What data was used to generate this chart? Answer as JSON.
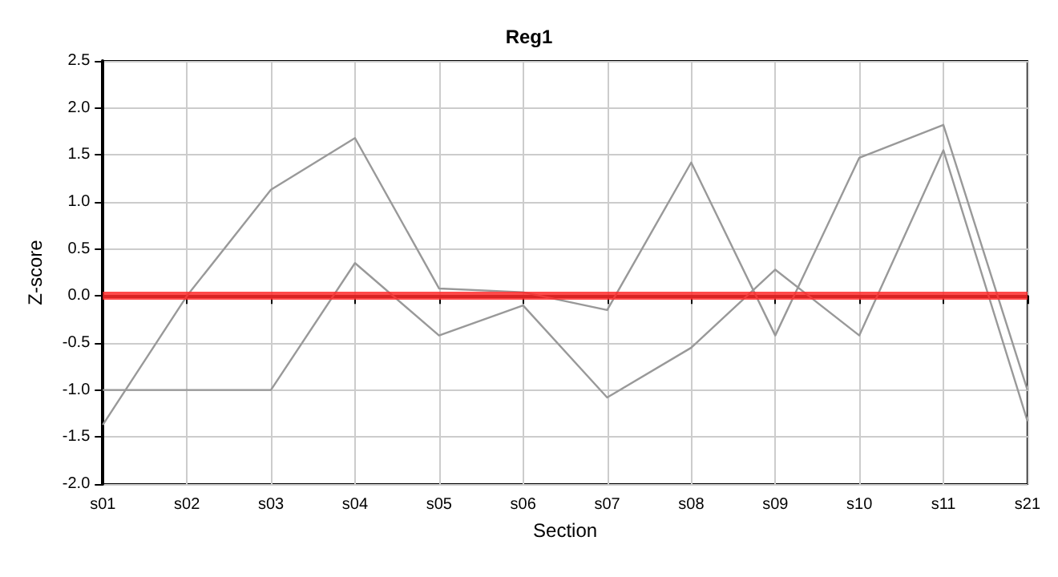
{
  "chart_data": {
    "type": "line",
    "title": "Reg1",
    "xlabel": "Section",
    "ylabel": "Z-score",
    "categories": [
      "s01",
      "s02",
      "s03",
      "s04",
      "s05",
      "s06",
      "s07",
      "s08",
      "s09",
      "s10",
      "s11",
      "s21"
    ],
    "series": [
      {
        "color": "#999999",
        "values": [
          -1.37,
          0,
          1.13,
          1.68,
          0.08,
          0.04,
          -0.15,
          1.42,
          -0.42,
          1.47,
          1.82,
          -1.0
        ]
      },
      {
        "color": "#999999",
        "values": [
          -1.0,
          -1.0,
          -1.0,
          0.35,
          -0.42,
          -0.1,
          -1.08,
          -0.55,
          0.28,
          -0.42,
          1.55,
          -1.33
        ]
      }
    ],
    "ylim": [
      -2.0,
      2.5
    ],
    "yticks": [
      {
        "value": -2,
        "label": "-2.0"
      },
      {
        "value": -1.5,
        "label": "-1.5"
      },
      {
        "value": -1,
        "label": "-1.0"
      },
      {
        "value": -0.5,
        "label": "-0.5"
      },
      {
        "value": 0,
        "label": "0.0"
      },
      {
        "value": 0.5,
        "label": "0.5"
      },
      {
        "value": 1,
        "label": "1.0"
      },
      {
        "value": 1.5,
        "label": "1.5"
      },
      {
        "value": 2,
        "label": "2.0"
      },
      {
        "value": 2.5,
        "label": "2.5"
      }
    ],
    "ref_lines": [
      {
        "axis": "y",
        "value": 0,
        "color": "#ff2a2a"
      }
    ],
    "grid": true,
    "marker": "none",
    "line_style": "solid"
  }
}
